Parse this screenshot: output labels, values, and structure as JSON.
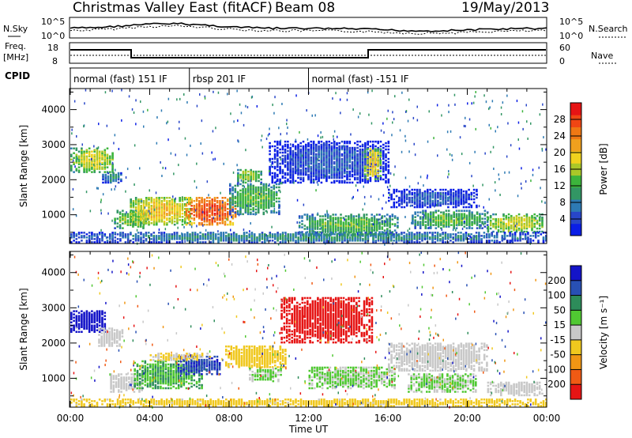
{
  "header": {
    "title": "Christmas Valley East (fitACF)",
    "beam": "Beam 08",
    "date": "19/May/2013"
  },
  "panels": {
    "nsky": {
      "label": "N.Sky",
      "tick_top": "10^5",
      "tick_bottom": "10^0"
    },
    "nsearch": {
      "label": "N.Search",
      "tick_top": "10^5",
      "tick_bottom": "10^0"
    },
    "freq": {
      "label_line1": "Freq.",
      "label_line2": "[MHz]",
      "tick_top": "18",
      "tick_bottom": "8"
    },
    "nave": {
      "label": "Nave",
      "tick_top": "60",
      "tick_bottom": "0"
    },
    "cpid": {
      "label": "CPID",
      "modes": [
        {
          "text": "normal (fast) 151 IF",
          "start_h": 0
        },
        {
          "text": "rbsp 201 IF",
          "start_h": 6
        },
        {
          "text": "normal (fast) -151 IF",
          "start_h": 12
        }
      ]
    }
  },
  "chart_data": [
    {
      "type": "heatmap",
      "name": "power",
      "ylabel": "Slant Range [km]",
      "ylim": [
        180,
        4600
      ],
      "xlim": [
        0,
        24
      ],
      "yticks": [
        1000,
        2000,
        3000,
        4000
      ],
      "colorbar": {
        "label": "Power [dB]",
        "range": [
          0,
          32
        ],
        "ticks": [
          "4",
          "8",
          "12",
          "16",
          "20",
          "24",
          "28"
        ],
        "colors": [
          "#0a1ee6",
          "#2846c8",
          "#2d7ab4",
          "#329664",
          "#3cb43c",
          "#aac828",
          "#f0d21e",
          "#f0a01e",
          "#f07814",
          "#f04614",
          "#e61414"
        ]
      },
      "blobs": [
        {
          "x0": 0,
          "x1": 2.2,
          "y0": 2200,
          "y1": 2900,
          "v": 18
        },
        {
          "x0": 1.6,
          "x1": 2.6,
          "y0": 1900,
          "y1": 2200,
          "v": 10
        },
        {
          "x0": 2.2,
          "x1": 4.0,
          "y0": 600,
          "y1": 1100,
          "v": 16
        },
        {
          "x0": 3.0,
          "x1": 6.0,
          "y0": 700,
          "y1": 1500,
          "v": 20
        },
        {
          "x0": 5.8,
          "x1": 8.4,
          "y0": 700,
          "y1": 1500,
          "v": 28
        },
        {
          "x0": 8.0,
          "x1": 10.6,
          "y0": 1000,
          "y1": 1900,
          "v": 14
        },
        {
          "x0": 8.4,
          "x1": 9.6,
          "y0": 1900,
          "y1": 2300,
          "v": 16
        },
        {
          "x0": 10.0,
          "x1": 16.0,
          "y0": 1900,
          "y1": 3100,
          "v": 6
        },
        {
          "x0": 11.5,
          "x1": 16.5,
          "y0": 400,
          "y1": 1000,
          "v": 14
        },
        {
          "x0": 14.8,
          "x1": 15.6,
          "y0": 2000,
          "y1": 2900,
          "v": 20
        },
        {
          "x0": 16.0,
          "x1": 20.5,
          "y0": 1200,
          "y1": 1700,
          "v": 6
        },
        {
          "x0": 17.2,
          "x1": 21.0,
          "y0": 600,
          "y1": 1100,
          "v": 14
        },
        {
          "x0": 21.0,
          "x1": 23.8,
          "y0": 500,
          "y1": 1000,
          "v": 18
        },
        {
          "x0": 0,
          "x1": 24,
          "y0": 200,
          "y1": 500,
          "v": 10
        }
      ]
    },
    {
      "type": "heatmap",
      "name": "velocity",
      "ylabel": "Slant Range [km]",
      "xlabel": "Time UT",
      "ylim": [
        180,
        4600
      ],
      "xlim": [
        0,
        24
      ],
      "yticks": [
        1000,
        2000,
        3000,
        4000
      ],
      "xticks": [
        "00:00",
        "04:00",
        "08:00",
        "12:00",
        "16:00",
        "20:00",
        "00:00"
      ],
      "colorbar": {
        "label": "Velocity [m s⁻¹]",
        "range": [
          -240,
          240
        ],
        "ticks": [
          "200",
          "100",
          "50",
          "15",
          "-15",
          "-50",
          "-100",
          "-200"
        ],
        "colors": [
          "#1414c8",
          "#2850b4",
          "#2d8c5a",
          "#50c832",
          "#c8c8c8",
          "#f0c81e",
          "#f09614",
          "#f05a14",
          "#e61414"
        ]
      },
      "blobs": [
        {
          "x0": 0,
          "x1": 1.8,
          "y0": 2300,
          "y1": 2900,
          "v": 220
        },
        {
          "x0": 1.4,
          "x1": 2.6,
          "y0": 1900,
          "y1": 2400,
          "v": 0
        },
        {
          "x0": 2.0,
          "x1": 3.6,
          "y0": 600,
          "y1": 1100,
          "v": 0
        },
        {
          "x0": 3.2,
          "x1": 6.6,
          "y0": 700,
          "y1": 1500,
          "v": 80
        },
        {
          "x0": 5.4,
          "x1": 7.6,
          "y0": 1100,
          "y1": 1600,
          "v": 180
        },
        {
          "x0": 4.0,
          "x1": 7.0,
          "y0": 1500,
          "y1": 1700,
          "v": -30
        },
        {
          "x0": 7.8,
          "x1": 10.8,
          "y0": 1300,
          "y1": 1900,
          "v": -60
        },
        {
          "x0": 9.0,
          "x1": 10.6,
          "y0": 900,
          "y1": 1300,
          "v": 30
        },
        {
          "x0": 10.6,
          "x1": 15.2,
          "y0": 2000,
          "y1": 3300,
          "v": -220
        },
        {
          "x0": 12.0,
          "x1": 16.4,
          "y0": 700,
          "y1": 1300,
          "v": 30
        },
        {
          "x0": 16.0,
          "x1": 21.0,
          "y0": 1200,
          "y1": 2000,
          "v": 0
        },
        {
          "x0": 17.0,
          "x1": 20.5,
          "y0": 600,
          "y1": 1100,
          "v": 30
        },
        {
          "x0": 21.0,
          "x1": 23.8,
          "y0": 500,
          "y1": 900,
          "v": 0
        },
        {
          "x0": 0,
          "x1": 24,
          "y0": 200,
          "y1": 400,
          "v": -40
        }
      ]
    }
  ]
}
